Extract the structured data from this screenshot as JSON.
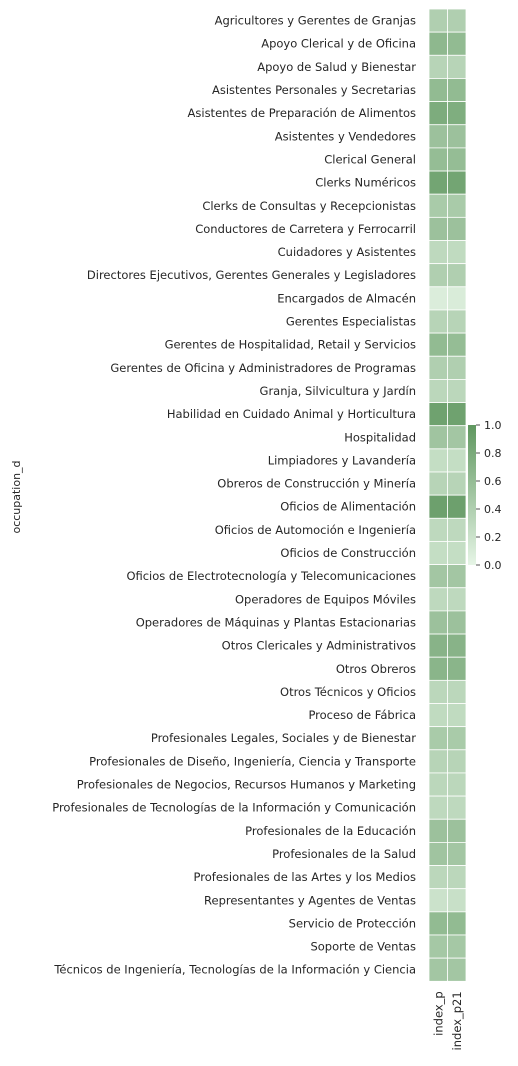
{
  "chart_data": {
    "type": "heatmap",
    "ylabel": "occupation_d",
    "columns": [
      "index_p",
      "index_p21"
    ],
    "rows": [
      "Agricultores y Gerentes de Granjas",
      "Apoyo Clerical y de Oficina",
      "Apoyo de Salud y Bienestar",
      "Asistentes Personales y Secretarias",
      "Asistentes de Preparación de Alimentos",
      "Asistentes y Vendedores",
      "Clerical General",
      "Clerks Numéricos",
      "Clerks de Consultas y Recepcionistas",
      "Conductores de Carretera y Ferrocarril",
      "Cuidadores y Asistentes",
      "Directores Ejecutivos, Gerentes Generales y Legisladores",
      "Encargados de Almacén",
      "Gerentes Especialistas",
      "Gerentes de Hospitalidad, Retail y Servicios",
      "Gerentes de Oficina y Administradores de Programas",
      "Granja, Silvicultura y Jardín",
      "Habilidad en Cuidado Animal y Horticultura",
      "Hospitalidad",
      "Limpiadores y Lavandería",
      "Obreros de Construcción y Minería",
      "Oficios de Alimentación",
      "Oficios de Automoción e Ingeniería",
      "Oficios de Construcción",
      "Oficios de Electrotecnología y Telecomunicaciones",
      "Operadores de Equipos Móviles",
      "Operadores de Máquinas y Plantas Estacionarias",
      "Otros Clericales y Administrativos",
      "Otros Obreros",
      "Otros Técnicos y Oficios",
      "Proceso de Fábrica",
      "Profesionales Legales, Sociales y de Bienestar",
      "Profesionales de Diseño, Ingeniería, Ciencia y Transporte",
      "Profesionales de Negocios, Recursos Humanos y Marketing",
      "Profesionales de Tecnologías de la Información y Comunicación",
      "Profesionales de la Educación",
      "Profesionales de la Salud",
      "Profesionales de las Artes y los Medios",
      "Representantes y Agentes de Ventas",
      "Servicio de Protección",
      "Soporte de Ventas",
      "Técnicos de Ingeniería, Tecnologías de la Información y Ciencia"
    ],
    "values": [
      [
        0.4,
        0.4
      ],
      [
        0.65,
        0.62
      ],
      [
        0.35,
        0.35
      ],
      [
        0.62,
        0.62
      ],
      [
        0.78,
        0.76
      ],
      [
        0.55,
        0.55
      ],
      [
        0.6,
        0.6
      ],
      [
        0.85,
        0.85
      ],
      [
        0.45,
        0.45
      ],
      [
        0.55,
        0.55
      ],
      [
        0.3,
        0.28
      ],
      [
        0.4,
        0.4
      ],
      [
        0.08,
        0.1
      ],
      [
        0.35,
        0.35
      ],
      [
        0.62,
        0.6
      ],
      [
        0.4,
        0.4
      ],
      [
        0.32,
        0.32
      ],
      [
        0.88,
        0.88
      ],
      [
        0.52,
        0.5
      ],
      [
        0.25,
        0.25
      ],
      [
        0.35,
        0.35
      ],
      [
        0.9,
        0.9
      ],
      [
        0.3,
        0.3
      ],
      [
        0.25,
        0.25
      ],
      [
        0.5,
        0.5
      ],
      [
        0.3,
        0.3
      ],
      [
        0.55,
        0.55
      ],
      [
        0.7,
        0.7
      ],
      [
        0.68,
        0.68
      ],
      [
        0.32,
        0.32
      ],
      [
        0.28,
        0.28
      ],
      [
        0.45,
        0.45
      ],
      [
        0.35,
        0.35
      ],
      [
        0.32,
        0.32
      ],
      [
        0.3,
        0.3
      ],
      [
        0.55,
        0.55
      ],
      [
        0.52,
        0.5
      ],
      [
        0.32,
        0.32
      ],
      [
        0.2,
        0.22
      ],
      [
        0.62,
        0.62
      ],
      [
        0.48,
        0.48
      ],
      [
        0.5,
        0.5
      ]
    ],
    "vmin": 0.0,
    "vmax": 1.0,
    "colorbar_ticks": [
      "0.0",
      "0.2",
      "0.4",
      "0.6",
      "0.8",
      "1.0"
    ],
    "colormap": [
      "#e6f5e6",
      "#5f975f"
    ]
  }
}
